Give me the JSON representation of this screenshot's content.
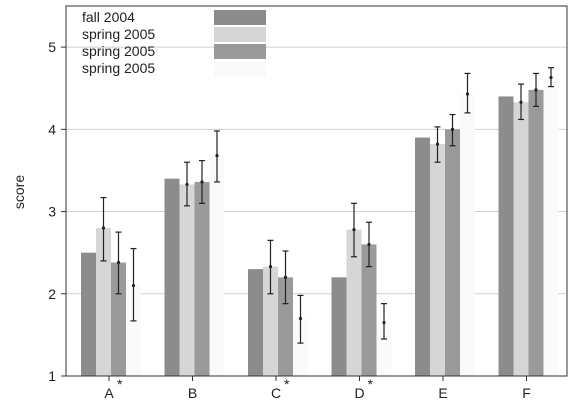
{
  "chart_data": {
    "type": "bar",
    "ylabel": "score",
    "ylim": [
      1,
      5.5
    ],
    "yticks": [
      1,
      2,
      3,
      4,
      5
    ],
    "grid": "horizontal lines at integer y ticks",
    "legend_position": "top-left",
    "categories": [
      "A",
      "B",
      "C",
      "D",
      "E",
      "F"
    ],
    "category_marks": [
      "*",
      "",
      "*",
      "*",
      "",
      ""
    ],
    "series": [
      {
        "name": "fall 2004",
        "color": "#8c8c8c",
        "values": [
          2.5,
          3.4,
          2.3,
          2.2,
          3.9,
          4.4
        ],
        "err_low": [
          2.5,
          3.4,
          2.3,
          2.2,
          3.9,
          4.4
        ],
        "err_high": [
          2.5,
          3.4,
          2.3,
          2.2,
          3.9,
          4.4
        ]
      },
      {
        "name": "spring 2005",
        "color": "#d6d6d6",
        "values": [
          2.8,
          3.33,
          2.33,
          2.78,
          3.82,
          4.33
        ],
        "err_low": [
          2.4,
          3.07,
          2.0,
          2.45,
          3.6,
          4.12
        ],
        "err_high": [
          3.17,
          3.6,
          2.65,
          3.1,
          4.03,
          4.55
        ]
      },
      {
        "name": "spring 2005",
        "color": "#9a9a9a",
        "values": [
          2.38,
          3.36,
          2.2,
          2.6,
          4.0,
          4.48
        ],
        "err_low": [
          2.0,
          3.1,
          1.88,
          2.33,
          3.8,
          4.28
        ],
        "err_high": [
          2.75,
          3.62,
          2.52,
          2.87,
          4.18,
          4.68
        ]
      },
      {
        "name": "spring 2005",
        "color": "#fafafa",
        "values": [
          2.1,
          3.68,
          1.7,
          1.65,
          4.43,
          4.63
        ],
        "err_low": [
          1.67,
          3.36,
          1.4,
          1.45,
          4.2,
          4.52
        ],
        "err_high": [
          2.55,
          3.98,
          1.98,
          1.88,
          4.68,
          4.75
        ]
      }
    ]
  }
}
